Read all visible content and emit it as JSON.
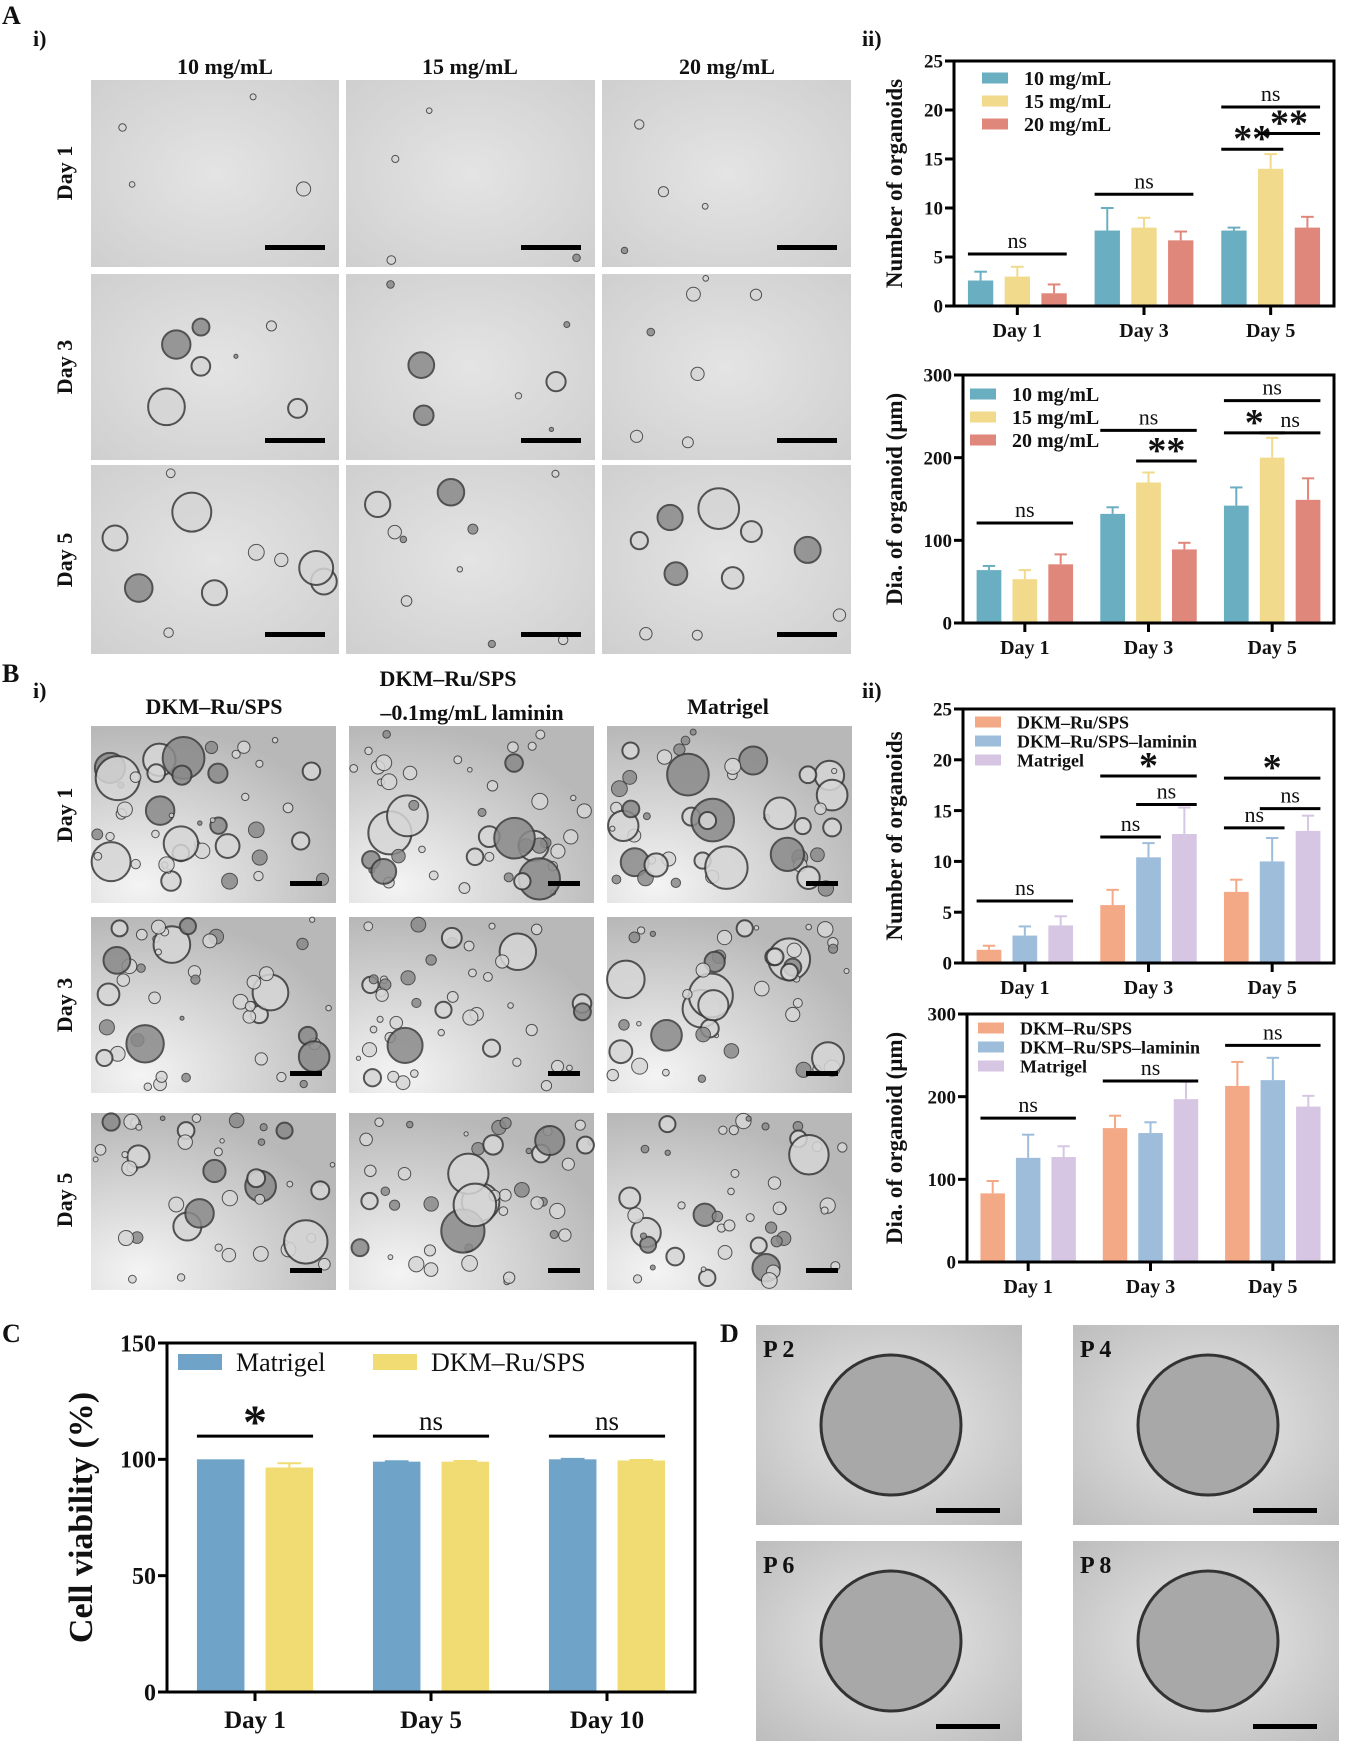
{
  "panel_labels": {
    "A": "A",
    "B": "B",
    "C": "C",
    "D": "D",
    "A_i": "i)",
    "A_ii": "ii)",
    "B_i": "i)",
    "B_ii": "ii)"
  },
  "panel_A": {
    "columns": [
      "10 mg/mL",
      "15 mg/mL",
      "20 mg/mL"
    ],
    "rows": [
      "Day 1",
      "Day 3",
      "Day 5"
    ]
  },
  "panel_B": {
    "column_1": "DKM–Ru/SPS",
    "column_2_line1": "DKM–Ru/SPS",
    "column_2_line2": "–0.1mg/mL laminin",
    "column_3": "Matrigel",
    "rows": [
      "Day 1",
      "Day 3",
      "Day 5"
    ]
  },
  "panel_D": {
    "labels": [
      "P 2",
      "P 4",
      "P 6",
      "P 8"
    ]
  },
  "chart_data": [
    {
      "type": "bar",
      "panel": "A ii (top)",
      "title": "",
      "xlabel": "",
      "ylabel": "Number of organoids",
      "ylim": [
        0,
        25
      ],
      "yticks": [
        0,
        5,
        10,
        15,
        20,
        25
      ],
      "categories": [
        "Day 1",
        "Day 3",
        "Day 5"
      ],
      "legend": "top-left",
      "grid": false,
      "series": [
        {
          "name": "10 mg/mL",
          "color": "#6aaec2",
          "values": [
            2.6,
            7.7,
            7.7
          ],
          "errors": [
            0.9,
            2.3,
            0.3
          ]
        },
        {
          "name": "15 mg/mL",
          "color": "#f1da8c",
          "values": [
            3.0,
            8.0,
            14.0
          ],
          "errors": [
            1.0,
            1.0,
            1.5
          ]
        },
        {
          "name": "20 mg/mL",
          "color": "#e0877b",
          "values": [
            1.3,
            6.7,
            8.0
          ],
          "errors": [
            0.9,
            0.9,
            1.1
          ]
        }
      ],
      "annotations": [
        {
          "category": 0,
          "from": 0,
          "to": 2,
          "y": 5.3,
          "label": "ns"
        },
        {
          "category": 1,
          "from": 0,
          "to": 2,
          "y": 11.4,
          "label": "ns"
        },
        {
          "category": 2,
          "from": 0,
          "to": 2,
          "y": 20.3,
          "label": "ns"
        },
        {
          "category": 2,
          "from": 0,
          "to": 1,
          "y": 16.0,
          "label": "**"
        },
        {
          "category": 2,
          "from": 1,
          "to": 2,
          "y": 17.6,
          "label": "**"
        }
      ]
    },
    {
      "type": "bar",
      "panel": "A ii (bottom)",
      "title": "",
      "xlabel": "",
      "ylabel": "Dia. of organoid (μm)",
      "ylim": [
        0,
        300
      ],
      "yticks": [
        0,
        100,
        200,
        300
      ],
      "categories": [
        "Day 1",
        "Day 3",
        "Day 5"
      ],
      "legend": "top-left",
      "grid": false,
      "series": [
        {
          "name": "10 mg/mL",
          "color": "#6aaec2",
          "values": [
            64,
            132,
            142
          ],
          "errors": [
            5,
            8,
            22
          ]
        },
        {
          "name": "15 mg/mL",
          "color": "#f1da8c",
          "values": [
            53,
            170,
            200
          ],
          "errors": [
            11,
            12,
            24
          ]
        },
        {
          "name": "20 mg/mL",
          "color": "#e0877b",
          "values": [
            71,
            89,
            149
          ],
          "errors": [
            12,
            8,
            26
          ]
        }
      ],
      "annotations": [
        {
          "category": 0,
          "from": 0,
          "to": 2,
          "y": 121,
          "label": "ns"
        },
        {
          "category": 1,
          "from": 0,
          "to": 2,
          "y": 233,
          "label": "ns"
        },
        {
          "category": 1,
          "from": 1,
          "to": 2,
          "y": 196,
          "label": "**"
        },
        {
          "category": 2,
          "from": 0,
          "to": 2,
          "y": 269,
          "label": "ns"
        },
        {
          "category": 2,
          "from": 0,
          "to": 1,
          "y": 230,
          "label": "*"
        },
        {
          "category": 2,
          "from": 1,
          "to": 2,
          "y": 230,
          "label": "ns"
        }
      ]
    },
    {
      "type": "bar",
      "panel": "B ii (top)",
      "title": "",
      "xlabel": "",
      "ylabel": "Number of organoids",
      "ylim": [
        0,
        25
      ],
      "yticks": [
        0,
        5,
        10,
        15,
        20,
        25
      ],
      "categories": [
        "Day 1",
        "Day 3",
        "Day 5"
      ],
      "legend": "top-left",
      "grid": false,
      "series": [
        {
          "name": "DKM–Ru/SPS",
          "color": "#f3a986",
          "values": [
            1.3,
            5.7,
            7.0
          ],
          "errors": [
            0.4,
            1.5,
            1.2
          ]
        },
        {
          "name": "DKM–Ru/SPS–laminin",
          "color": "#9ebddb",
          "values": [
            2.7,
            10.4,
            10.0
          ],
          "errors": [
            0.9,
            1.4,
            2.3
          ]
        },
        {
          "name": "Matrigel",
          "color": "#d6c6e3",
          "values": [
            3.7,
            12.7,
            13.0
          ],
          "errors": [
            0.9,
            2.6,
            1.5
          ]
        }
      ],
      "annotations": [
        {
          "category": 0,
          "from": 0,
          "to": 2,
          "y": 6.1,
          "label": "ns"
        },
        {
          "category": 1,
          "from": 0,
          "to": 2,
          "y": 18.4,
          "label": "*"
        },
        {
          "category": 1,
          "from": 0,
          "to": 1,
          "y": 12.4,
          "label": "ns"
        },
        {
          "category": 1,
          "from": 1,
          "to": 2,
          "y": 15.6,
          "label": "ns"
        },
        {
          "category": 2,
          "from": 0,
          "to": 2,
          "y": 18.2,
          "label": "*"
        },
        {
          "category": 2,
          "from": 0,
          "to": 1,
          "y": 13.3,
          "label": "ns"
        },
        {
          "category": 2,
          "from": 1,
          "to": 2,
          "y": 15.2,
          "label": "ns"
        }
      ]
    },
    {
      "type": "bar",
      "panel": "B ii (bottom)",
      "title": "",
      "xlabel": "",
      "ylabel": "Dia. of organoid (μm)",
      "ylim": [
        0,
        300
      ],
      "yticks": [
        0,
        100,
        200,
        300
      ],
      "categories": [
        "Day 1",
        "Day 3",
        "Day 5"
      ],
      "legend": "top-left",
      "grid": false,
      "series": [
        {
          "name": "DKM–Ru/SPS",
          "color": "#f3a986",
          "values": [
            83,
            162,
            213
          ],
          "errors": [
            15,
            15,
            29
          ]
        },
        {
          "name": "DKM–Ru/SPS–laminin",
          "color": "#9ebddb",
          "values": [
            126,
            156,
            220
          ],
          "errors": [
            28,
            13,
            27
          ]
        },
        {
          "name": "Matrigel",
          "color": "#d6c6e3",
          "values": [
            127,
            197,
            188
          ],
          "errors": [
            13,
            21,
            13
          ]
        }
      ],
      "annotations": [
        {
          "category": 0,
          "from": 0,
          "to": 2,
          "y": 174,
          "label": "ns"
        },
        {
          "category": 1,
          "from": 0,
          "to": 2,
          "y": 219,
          "label": "ns"
        },
        {
          "category": 2,
          "from": 0,
          "to": 2,
          "y": 262,
          "label": "ns"
        }
      ]
    },
    {
      "type": "bar",
      "panel": "C",
      "title": "",
      "xlabel": "",
      "ylabel": "Cell viability (%)",
      "ylim": [
        0,
        150
      ],
      "yticks": [
        0,
        50,
        100,
        150
      ],
      "categories": [
        "Day 1",
        "Day 5",
        "Day 10"
      ],
      "legend": "top",
      "grid": false,
      "series": [
        {
          "name": "Matrigel",
          "color": "#6fa4c8",
          "values": [
            100,
            99,
            100
          ],
          "errors": [
            0,
            0.2,
            0.2
          ]
        },
        {
          "name": "DKM–Ru/SPS",
          "color": "#f1dc73",
          "values": [
            96.5,
            99,
            99.5
          ],
          "errors": [
            1.8,
            0.3,
            0.2
          ]
        }
      ],
      "annotations": [
        {
          "category": 0,
          "from": 0,
          "to": 1,
          "y": 110,
          "label": "*"
        },
        {
          "category": 1,
          "from": 0,
          "to": 1,
          "y": 110,
          "label": "ns"
        },
        {
          "category": 2,
          "from": 0,
          "to": 1,
          "y": 110,
          "label": "ns"
        }
      ]
    }
  ]
}
